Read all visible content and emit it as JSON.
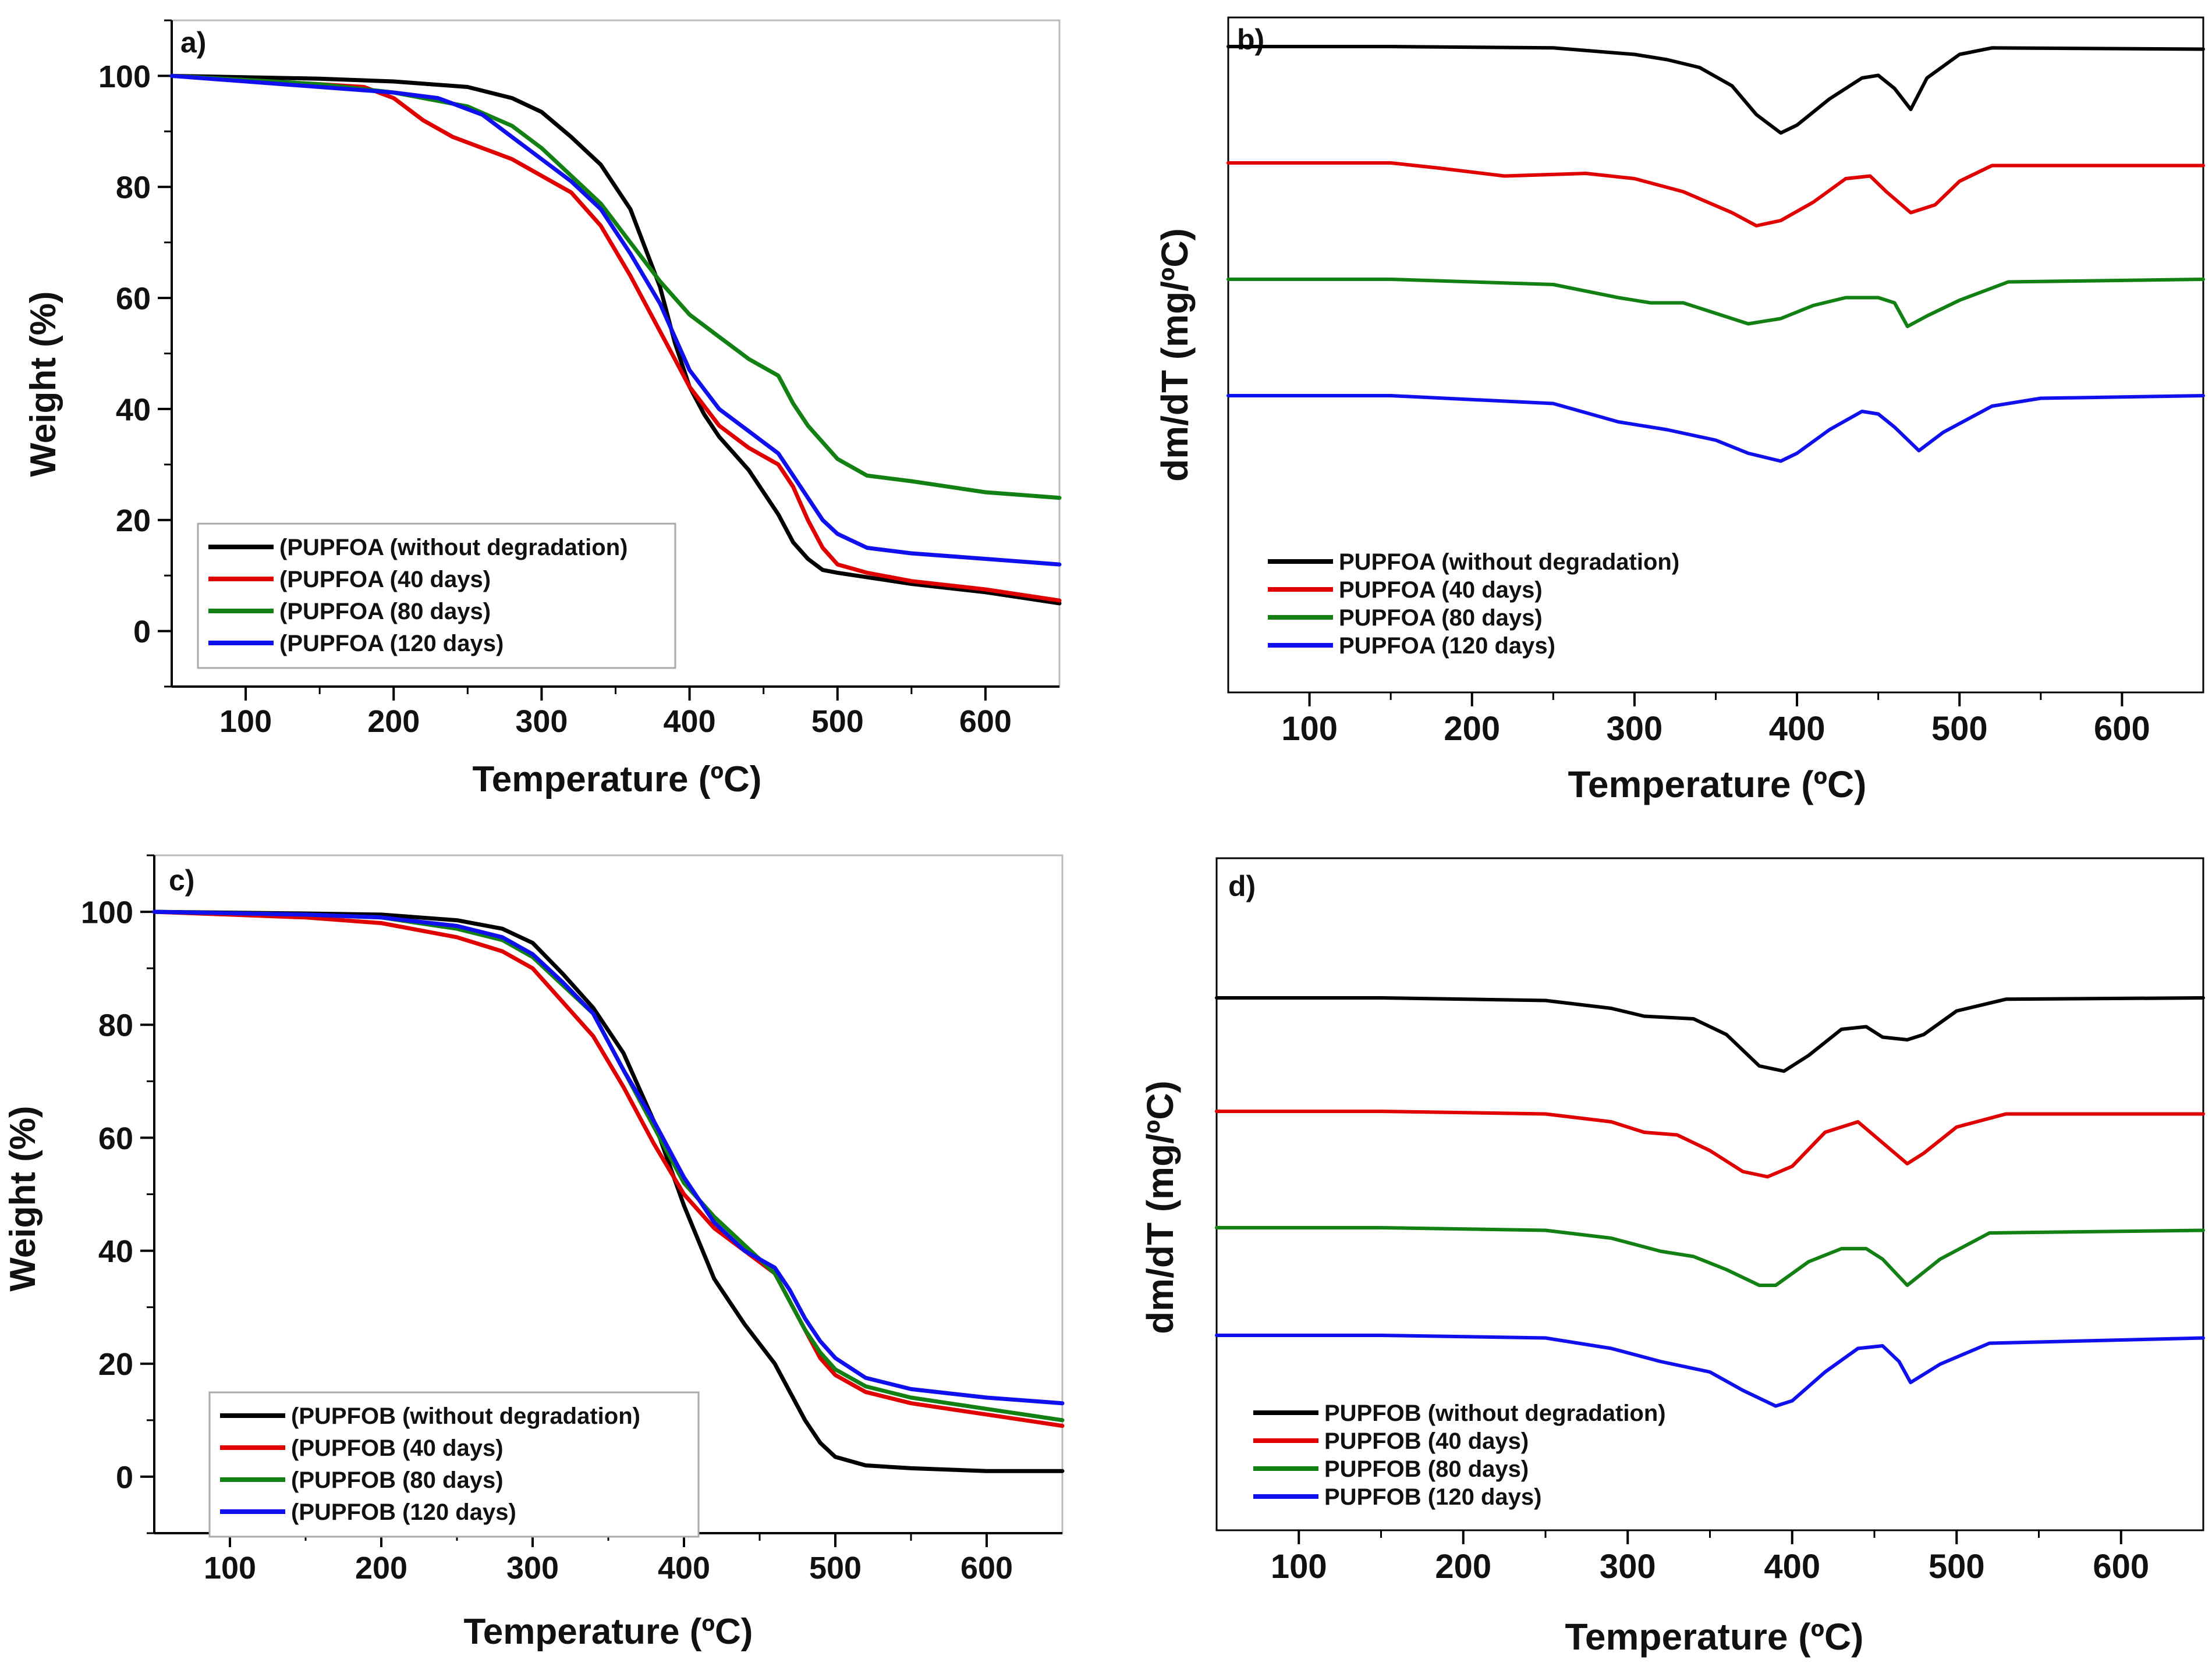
{
  "figure": {
    "panels": [
      "a",
      "b",
      "c",
      "d"
    ]
  },
  "chart_data": [
    {
      "panel": "a)",
      "type": "line",
      "xlabel": "Temperature (ºC)",
      "ylabel": "Weight (%)",
      "xlim": [
        50,
        650
      ],
      "ylim": [
        -10,
        110
      ],
      "xticks": [
        100,
        200,
        300,
        400,
        500,
        600
      ],
      "yticks": [
        0,
        20,
        40,
        60,
        80,
        100
      ],
      "legend_position": "bottom-left",
      "series": [
        {
          "name": "(PUPFOA (without degradation)",
          "color": "#000000",
          "x": [
            50,
            150,
            200,
            250,
            280,
            300,
            320,
            340,
            360,
            380,
            390,
            400,
            410,
            420,
            440,
            460,
            470,
            480,
            490,
            500,
            550,
            600,
            650
          ],
          "y": [
            100,
            99.5,
            99,
            98,
            96,
            93.5,
            89,
            84,
            76,
            62,
            52,
            44,
            39,
            35,
            29,
            21,
            16,
            13,
            11,
            10.5,
            8.5,
            7,
            5
          ]
        },
        {
          "name": "(PUPFOA (40 days)",
          "color": "#e00000",
          "x": [
            50,
            150,
            180,
            200,
            220,
            240,
            260,
            280,
            300,
            320,
            340,
            360,
            380,
            390,
            400,
            420,
            440,
            460,
            470,
            480,
            490,
            500,
            520,
            550,
            600,
            650
          ],
          "y": [
            100,
            98.5,
            98,
            96,
            92,
            89,
            87,
            85,
            82,
            79,
            73,
            64,
            54,
            49,
            44,
            37,
            33,
            30,
            26,
            20,
            15,
            12,
            10.5,
            9,
            7.5,
            5.5
          ]
        },
        {
          "name": "(PUPFOA (80 days)",
          "color": "#128012",
          "x": [
            50,
            150,
            200,
            250,
            280,
            300,
            320,
            340,
            360,
            380,
            400,
            420,
            440,
            460,
            470,
            480,
            490,
            500,
            520,
            550,
            600,
            650
          ],
          "y": [
            100,
            98.5,
            97,
            94.5,
            91,
            87,
            82,
            77,
            70,
            63,
            57,
            53,
            49,
            46,
            41,
            37,
            34,
            31,
            28,
            27,
            25,
            24
          ]
        },
        {
          "name": "(PUPFOA (120 days)",
          "color": "#1010ee",
          "x": [
            50,
            150,
            200,
            230,
            260,
            280,
            300,
            320,
            340,
            360,
            380,
            390,
            400,
            420,
            440,
            460,
            470,
            480,
            490,
            500,
            520,
            550,
            600,
            650
          ],
          "y": [
            100,
            98,
            97,
            96,
            93,
            89,
            85,
            81,
            76,
            68,
            59,
            53,
            47,
            40,
            36,
            32,
            28,
            24,
            20,
            17.5,
            15,
            14,
            13,
            12
          ]
        }
      ]
    },
    {
      "panel": "b)",
      "type": "line",
      "xlabel": "Temperature (ºC)",
      "ylabel": "dm/dT (mg/ºC)",
      "xlim": [
        50,
        650
      ],
      "xticks": [
        100,
        200,
        300,
        400,
        500,
        600
      ],
      "y_ticks_shown": false,
      "legend_position": "bottom-left",
      "series": [
        {
          "name": "PUPFOA (without degradation)",
          "color": "#000000",
          "x": [
            50,
            150,
            250,
            300,
            320,
            340,
            360,
            375,
            390,
            400,
            420,
            440,
            450,
            460,
            470,
            480,
            500,
            520,
            650
          ],
          "y": [
            0,
            0,
            -0.5,
            -3,
            -5,
            -8,
            -15,
            -26,
            -33,
            -30,
            -20,
            -12,
            -11,
            -16,
            -24,
            -12,
            -3,
            -0.5,
            -1
          ]
        },
        {
          "name": "PUPFOA (40 days)",
          "color": "#e00000",
          "x": [
            50,
            150,
            180,
            220,
            270,
            300,
            330,
            360,
            375,
            390,
            410,
            430,
            445,
            455,
            470,
            485,
            500,
            520,
            650
          ],
          "y": [
            0,
            0,
            -2,
            -5,
            -4,
            -6,
            -11,
            -19,
            -24,
            -22,
            -15,
            -6,
            -5,
            -11,
            -19,
            -16,
            -7,
            -1,
            -1
          ]
        },
        {
          "name": "PUPFOA (80 days)",
          "color": "#128012",
          "x": [
            50,
            150,
            250,
            290,
            310,
            330,
            350,
            370,
            390,
            410,
            430,
            450,
            460,
            468,
            480,
            500,
            530,
            650
          ],
          "y": [
            0,
            0,
            -2,
            -7,
            -9,
            -9,
            -13,
            -17,
            -15,
            -10,
            -7,
            -7,
            -9,
            -18,
            -14,
            -8,
            -1,
            0
          ]
        },
        {
          "name": "PUPFOA (120 days)",
          "color": "#1010ee",
          "x": [
            50,
            150,
            250,
            290,
            320,
            350,
            370,
            390,
            400,
            420,
            440,
            450,
            460,
            475,
            490,
            520,
            550,
            650
          ],
          "y": [
            0,
            0,
            -3,
            -10,
            -13,
            -17,
            -22,
            -25,
            -22,
            -13,
            -6,
            -7,
            -12,
            -21,
            -14,
            -4,
            -1,
            0
          ]
        }
      ]
    },
    {
      "panel": "c)",
      "type": "line",
      "xlabel": "Temperature (ºC)",
      "ylabel": "Weight (%)",
      "xlim": [
        50,
        650
      ],
      "ylim": [
        -10,
        110
      ],
      "xticks": [
        100,
        200,
        300,
        400,
        500,
        600
      ],
      "yticks": [
        0,
        20,
        40,
        60,
        80,
        100
      ],
      "legend_position": "bottom-left",
      "series": [
        {
          "name": "(PUPFOB (without degradation)",
          "color": "#000000",
          "x": [
            50,
            150,
            200,
            250,
            280,
            300,
            320,
            340,
            360,
            380,
            400,
            420,
            440,
            460,
            470,
            480,
            490,
            500,
            520,
            550,
            600,
            650
          ],
          "y": [
            100,
            99.7,
            99.5,
            98.5,
            97,
            94.5,
            89,
            83,
            75,
            63,
            48,
            35,
            27,
            20,
            15,
            10,
            6,
            3.5,
            2,
            1.5,
            1,
            1
          ]
        },
        {
          "name": "(PUPFOB (40 days)",
          "color": "#e00000",
          "x": [
            50,
            150,
            200,
            250,
            280,
            300,
            320,
            340,
            360,
            380,
            400,
            420,
            440,
            460,
            470,
            480,
            490,
            500,
            520,
            550,
            600,
            650
          ],
          "y": [
            100,
            99,
            98,
            95.5,
            93,
            90,
            84,
            78,
            69,
            59,
            50,
            44,
            40,
            36,
            31,
            26,
            21,
            18,
            15,
            13,
            11,
            9
          ]
        },
        {
          "name": "(PUPFOB (80 days)",
          "color": "#128012",
          "x": [
            50,
            150,
            200,
            250,
            280,
            300,
            320,
            340,
            360,
            380,
            400,
            420,
            440,
            460,
            470,
            480,
            490,
            500,
            520,
            550,
            600,
            650
          ],
          "y": [
            100,
            99.5,
            99,
            97,
            95,
            92,
            87,
            82,
            72,
            62,
            52,
            46,
            41,
            36,
            31,
            26,
            22,
            19,
            16,
            14,
            12,
            10
          ]
        },
        {
          "name": "(PUPFOB (120 days)",
          "color": "#1010ee",
          "x": [
            50,
            150,
            200,
            250,
            280,
            300,
            320,
            340,
            360,
            380,
            400,
            420,
            440,
            460,
            470,
            480,
            490,
            500,
            520,
            550,
            600,
            650
          ],
          "y": [
            100,
            99.5,
            99,
            97.5,
            95.5,
            92.5,
            87.5,
            82,
            72,
            63,
            53,
            45,
            40,
            37,
            33,
            28,
            24,
            21,
            17.5,
            15.5,
            14,
            13
          ]
        }
      ]
    },
    {
      "panel": "d)",
      "type": "line",
      "xlabel": "Temperature (ºC)",
      "ylabel": "dm/dT (mg/ºC)",
      "xlim": [
        50,
        650
      ],
      "xticks": [
        100,
        200,
        300,
        400,
        500,
        600
      ],
      "y_ticks_shown": false,
      "legend_position": "bottom-left",
      "series": [
        {
          "name": "PUPFOB (without degradation)",
          "color": "#000000",
          "x": [
            50,
            150,
            250,
            290,
            310,
            340,
            360,
            380,
            395,
            410,
            430,
            445,
            455,
            470,
            480,
            500,
            530,
            650
          ],
          "y": [
            0,
            0,
            -1,
            -4,
            -7,
            -8,
            -14,
            -26,
            -28,
            -22,
            -12,
            -11,
            -15,
            -16,
            -14,
            -5,
            -0.5,
            0
          ]
        },
        {
          "name": "PUPFOB (40 days)",
          "color": "#e00000",
          "x": [
            50,
            150,
            250,
            290,
            310,
            330,
            350,
            370,
            385,
            400,
            420,
            440,
            455,
            470,
            480,
            500,
            530,
            650
          ],
          "y": [
            0,
            0,
            -1,
            -4,
            -8,
            -9,
            -15,
            -23,
            -25,
            -21,
            -8,
            -4,
            -12,
            -20,
            -16,
            -6,
            -1,
            -1
          ]
        },
        {
          "name": "PUPFOB (80 days)",
          "color": "#128012",
          "x": [
            50,
            150,
            250,
            290,
            320,
            340,
            360,
            380,
            390,
            410,
            430,
            445,
            455,
            470,
            490,
            520,
            650
          ],
          "y": [
            0,
            0,
            -1,
            -4,
            -9,
            -11,
            -16,
            -22,
            -22,
            -13,
            -8,
            -8,
            -12,
            -22,
            -12,
            -2,
            -1
          ]
        },
        {
          "name": "PUPFOB (120 days)",
          "color": "#1010ee",
          "x": [
            50,
            150,
            250,
            290,
            320,
            350,
            370,
            390,
            400,
            420,
            440,
            455,
            465,
            472,
            490,
            520,
            650
          ],
          "y": [
            0,
            0,
            -1,
            -5,
            -10,
            -14,
            -21,
            -27,
            -25,
            -14,
            -5,
            -4,
            -10,
            -18,
            -11,
            -3,
            -1
          ]
        }
      ]
    }
  ]
}
